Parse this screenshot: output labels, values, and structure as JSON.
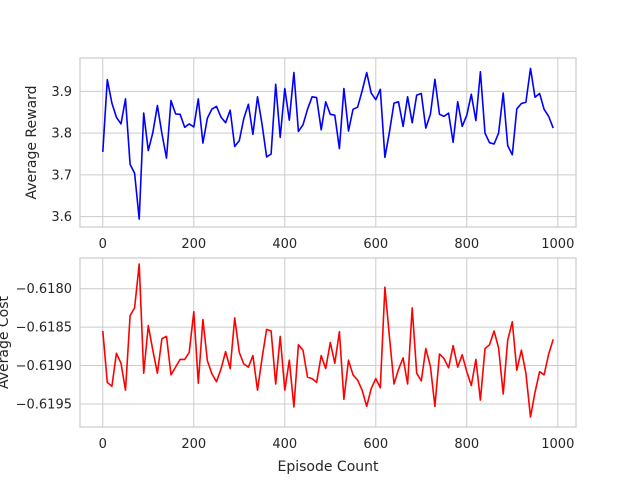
{
  "chart_data": [
    {
      "type": "line",
      "title": "",
      "xlabel": "",
      "ylabel": "Average Reward",
      "xlim": [
        -50,
        1040
      ],
      "ylim": [
        3.575,
        3.98
      ],
      "xticks": [
        0,
        200,
        400,
        600,
        800,
        1000
      ],
      "xtick_labels": [
        "0",
        "200",
        "400",
        "600",
        "800",
        "1000"
      ],
      "yticks": [
        3.6,
        3.7,
        3.8,
        3.9
      ],
      "ytick_labels": [
        "3.6",
        "3.7",
        "3.8",
        "3.9"
      ],
      "grid": true,
      "color": "#0000ff",
      "series": [
        {
          "x": [
            0,
            10,
            20,
            30,
            40,
            50,
            60,
            70,
            80,
            90,
            100,
            110,
            120,
            130,
            140,
            150,
            160,
            170,
            180,
            190,
            200,
            210,
            220,
            230,
            240,
            250,
            260,
            270,
            280,
            290,
            300,
            310,
            320,
            330,
            340,
            350,
            360,
            370,
            380,
            390,
            400,
            410,
            420,
            430,
            440,
            450,
            460,
            470,
            480,
            490,
            500,
            510,
            520,
            530,
            540,
            550,
            560,
            570,
            580,
            590,
            600,
            610,
            620,
            630,
            640,
            650,
            660,
            670,
            680,
            690,
            700,
            710,
            720,
            730,
            740,
            750,
            760,
            770,
            780,
            790,
            800,
            810,
            820,
            830,
            840,
            850,
            860,
            870,
            880,
            890,
            900,
            910,
            920,
            930,
            940,
            950,
            960,
            970,
            980,
            990
          ],
          "values": [
            3.755,
            3.928,
            3.872,
            3.838,
            3.822,
            3.882,
            3.725,
            3.704,
            3.594,
            3.848,
            3.758,
            3.801,
            3.866,
            3.799,
            3.74,
            3.878,
            3.846,
            3.845,
            3.814,
            3.822,
            3.815,
            3.882,
            3.776,
            3.836,
            3.858,
            3.864,
            3.838,
            3.825,
            3.855,
            3.768,
            3.782,
            3.835,
            3.869,
            3.797,
            3.887,
            3.822,
            3.743,
            3.75,
            3.917,
            3.79,
            3.907,
            3.831,
            3.945,
            3.804,
            3.82,
            3.857,
            3.887,
            3.885,
            3.808,
            3.875,
            3.845,
            3.843,
            3.763,
            3.907,
            3.805,
            3.857,
            3.862,
            3.901,
            3.945,
            3.896,
            3.88,
            3.905,
            3.742,
            3.802,
            3.872,
            3.875,
            3.816,
            3.887,
            3.825,
            3.891,
            3.895,
            3.812,
            3.845,
            3.929,
            3.845,
            3.84,
            3.848,
            3.778,
            3.875,
            3.816,
            3.843,
            3.893,
            3.83,
            3.947,
            3.8,
            3.777,
            3.774,
            3.8,
            3.896,
            3.77,
            3.748,
            3.858,
            3.871,
            3.874,
            3.955,
            3.886,
            3.895,
            3.857,
            3.84,
            3.812
          ]
        }
      ]
    },
    {
      "type": "line",
      "title": "",
      "xlabel": "Episode Count",
      "ylabel": "Average Cost",
      "xlim": [
        -50,
        1040
      ],
      "ylim": [
        -0.6198,
        -0.6176
      ],
      "xticks": [
        0,
        200,
        400,
        600,
        800,
        1000
      ],
      "xtick_labels": [
        "0",
        "200",
        "400",
        "600",
        "800",
        "1000"
      ],
      "yticks": [
        -0.618,
        -0.6185,
        -0.619,
        -0.6195
      ],
      "ytick_labels": [
        "−0.6180",
        "−0.6185",
        "−0.6190",
        "−0.6195"
      ],
      "grid": true,
      "color": "#ff0000",
      "series": [
        {
          "x": [
            0,
            10,
            20,
            30,
            40,
            50,
            60,
            70,
            80,
            90,
            100,
            110,
            120,
            130,
            140,
            150,
            160,
            170,
            180,
            190,
            200,
            210,
            220,
            230,
            240,
            250,
            260,
            270,
            280,
            290,
            300,
            310,
            320,
            330,
            340,
            350,
            360,
            370,
            380,
            390,
            400,
            410,
            420,
            430,
            440,
            450,
            460,
            470,
            480,
            490,
            500,
            510,
            520,
            530,
            540,
            550,
            560,
            570,
            580,
            590,
            600,
            610,
            620,
            630,
            640,
            650,
            660,
            670,
            680,
            690,
            700,
            710,
            720,
            730,
            740,
            750,
            760,
            770,
            780,
            790,
            800,
            810,
            820,
            830,
            840,
            850,
            860,
            870,
            880,
            890,
            900,
            910,
            920,
            930,
            940,
            950,
            960,
            970,
            980,
            990
          ],
          "values": [
            -0.61855,
            -0.61922,
            -0.61927,
            -0.61884,
            -0.61897,
            -0.61932,
            -0.61835,
            -0.61825,
            -0.61768,
            -0.6191,
            -0.61848,
            -0.6188,
            -0.6191,
            -0.61865,
            -0.61862,
            -0.61912,
            -0.61902,
            -0.61892,
            -0.61892,
            -0.61883,
            -0.6183,
            -0.61923,
            -0.6184,
            -0.61894,
            -0.61911,
            -0.61921,
            -0.61904,
            -0.61882,
            -0.61904,
            -0.61838,
            -0.61883,
            -0.61898,
            -0.61902,
            -0.61887,
            -0.61932,
            -0.61891,
            -0.61853,
            -0.61855,
            -0.61924,
            -0.61862,
            -0.61932,
            -0.61893,
            -0.61954,
            -0.61873,
            -0.6188,
            -0.61915,
            -0.61917,
            -0.61922,
            -0.61887,
            -0.61904,
            -0.6187,
            -0.61897,
            -0.61856,
            -0.61944,
            -0.61893,
            -0.61912,
            -0.61919,
            -0.61932,
            -0.61953,
            -0.6193,
            -0.61917,
            -0.61929,
            -0.61798,
            -0.61862,
            -0.61924,
            -0.61905,
            -0.6189,
            -0.61924,
            -0.61825,
            -0.6191,
            -0.6192,
            -0.61878,
            -0.61901,
            -0.61953,
            -0.61885,
            -0.61891,
            -0.61903,
            -0.61874,
            -0.61902,
            -0.61886,
            -0.61908,
            -0.61926,
            -0.61892,
            -0.61945,
            -0.61878,
            -0.61873,
            -0.61855,
            -0.61877,
            -0.61937,
            -0.61867,
            -0.61843,
            -0.61906,
            -0.6188,
            -0.6191,
            -0.61967,
            -0.61935,
            -0.61908,
            -0.61912,
            -0.61885,
            -0.61866
          ]
        }
      ]
    }
  ]
}
